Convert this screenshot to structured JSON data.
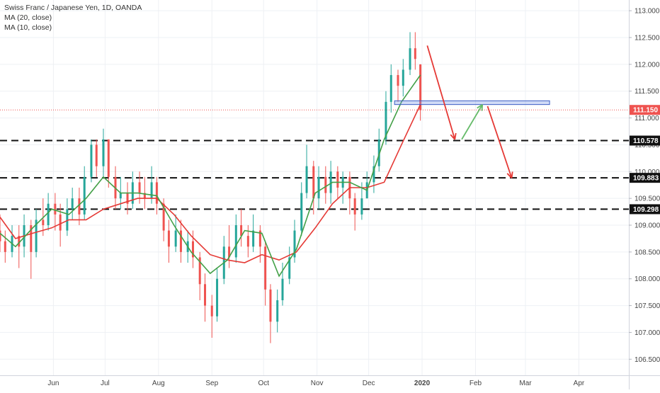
{
  "chart_data": {
    "type": "candlestick",
    "title": "Swiss Franc / Japanese Yen, 1D, OANDA",
    "indicators": [
      {
        "name": "MA (20, close)",
        "color": "#e53935"
      },
      {
        "name": "MA (10, close)",
        "color": "#43a047"
      }
    ],
    "ylim": [
      106.2,
      113.2
    ],
    "y_ticks": [
      "106.500",
      "107.000",
      "107.500",
      "108.000",
      "108.500",
      "109.000",
      "109.500",
      "110.000",
      "110.500",
      "111.000",
      "111.500",
      "112.000",
      "112.500",
      "113.000"
    ],
    "x_ticks": [
      "Jun",
      "Jul",
      "Aug",
      "Sep",
      "Oct",
      "Nov",
      "Dec",
      "2020",
      "Feb",
      "Mar",
      "Apr"
    ],
    "grid": true,
    "current_price": {
      "label": "111.150",
      "value": 111.15,
      "color": "#ef5350"
    },
    "levels": [
      {
        "label": "110.578",
        "value": 110.578
      },
      {
        "label": "109.883",
        "value": 109.883
      },
      {
        "label": "109.298",
        "value": 109.298
      }
    ],
    "zone": {
      "start": "2019-12-16",
      "end": "2020-03-15",
      "low": 111.25,
      "high": 111.32
    },
    "arrows": [
      {
        "color": "#e53935",
        "from": [
          "2020-01-04",
          112.35
        ],
        "to": [
          "2020-01-20",
          110.6
        ]
      },
      {
        "color": "#66bb6a",
        "from": [
          "2020-01-24",
          110.6
        ],
        "to": [
          "2020-02-05",
          111.25
        ]
      },
      {
        "color": "#e53935",
        "from": [
          "2020-02-08",
          111.22
        ],
        "to": [
          "2020-02-22",
          109.88
        ]
      }
    ],
    "ma20": [
      [
        "2019-05-01",
        109.15
      ],
      [
        "2019-05-10",
        108.75
      ],
      [
        "2019-05-20",
        108.85
      ],
      [
        "2019-05-31",
        108.95
      ],
      [
        "2019-06-10",
        109.1
      ],
      [
        "2019-06-20",
        109.1
      ],
      [
        "2019-06-30",
        109.3
      ],
      [
        "2019-07-10",
        109.4
      ],
      [
        "2019-07-20",
        109.5
      ],
      [
        "2019-07-31",
        109.5
      ],
      [
        "2019-08-10",
        109.2
      ],
      [
        "2019-08-20",
        108.8
      ],
      [
        "2019-08-31",
        108.45
      ],
      [
        "2019-09-10",
        108.35
      ],
      [
        "2019-09-20",
        108.3
      ],
      [
        "2019-09-30",
        108.45
      ],
      [
        "2019-10-10",
        108.35
      ],
      [
        "2019-10-20",
        108.5
      ],
      [
        "2019-10-31",
        108.95
      ],
      [
        "2019-11-10",
        109.4
      ],
      [
        "2019-11-20",
        109.7
      ],
      [
        "2019-11-30",
        109.7
      ],
      [
        "2019-12-10",
        109.8
      ],
      [
        "2019-12-20",
        110.5
      ],
      [
        "2019-12-31",
        111.25
      ]
    ],
    "ma10": [
      [
        "2019-05-01",
        108.85
      ],
      [
        "2019-05-10",
        108.6
      ],
      [
        "2019-05-20",
        108.95
      ],
      [
        "2019-05-31",
        109.3
      ],
      [
        "2019-06-10",
        109.2
      ],
      [
        "2019-06-20",
        109.5
      ],
      [
        "2019-06-30",
        109.9
      ],
      [
        "2019-07-10",
        109.6
      ],
      [
        "2019-07-20",
        109.6
      ],
      [
        "2019-07-31",
        109.55
      ],
      [
        "2019-08-10",
        109.0
      ],
      [
        "2019-08-20",
        108.5
      ],
      [
        "2019-08-31",
        108.1
      ],
      [
        "2019-09-10",
        108.35
      ],
      [
        "2019-09-20",
        108.9
      ],
      [
        "2019-09-30",
        108.85
      ],
      [
        "2019-10-10",
        108.05
      ],
      [
        "2019-10-20",
        108.55
      ],
      [
        "2019-10-31",
        109.6
      ],
      [
        "2019-11-10",
        109.8
      ],
      [
        "2019-11-20",
        109.8
      ],
      [
        "2019-11-30",
        109.65
      ],
      [
        "2019-12-10",
        110.6
      ],
      [
        "2019-12-20",
        111.3
      ],
      [
        "2019-12-31",
        111.8
      ]
    ],
    "candles": [
      [
        "2019-05-01",
        108.9,
        108.7,
        109.2,
        108.5
      ],
      [
        "2019-05-04",
        108.7,
        108.5,
        108.9,
        108.3
      ],
      [
        "2019-05-08",
        108.5,
        108.8,
        109.0,
        108.4
      ],
      [
        "2019-05-12",
        108.8,
        108.6,
        109.0,
        108.2
      ],
      [
        "2019-05-15",
        108.6,
        109.0,
        109.2,
        108.4
      ],
      [
        "2019-05-19",
        109.0,
        108.5,
        109.1,
        108.0
      ],
      [
        "2019-05-22",
        108.5,
        109.1,
        109.3,
        108.4
      ],
      [
        "2019-05-26",
        109.1,
        109.0,
        109.5,
        108.8
      ],
      [
        "2019-05-29",
        109.0,
        109.4,
        109.6,
        108.9
      ],
      [
        "2019-06-02",
        109.4,
        109.2,
        109.6,
        108.9
      ],
      [
        "2019-06-05",
        109.2,
        108.9,
        109.4,
        108.6
      ],
      [
        "2019-06-09",
        108.9,
        109.3,
        109.5,
        108.8
      ],
      [
        "2019-06-12",
        109.3,
        109.5,
        109.7,
        109.1
      ],
      [
        "2019-06-16",
        109.5,
        109.2,
        109.7,
        109.0
      ],
      [
        "2019-06-19",
        109.2,
        109.9,
        110.1,
        109.1
      ],
      [
        "2019-06-23",
        109.9,
        110.5,
        110.6,
        109.8
      ],
      [
        "2019-06-26",
        110.5,
        110.1,
        110.6,
        109.9
      ],
      [
        "2019-06-30",
        110.1,
        110.6,
        110.8,
        109.9
      ],
      [
        "2019-07-03",
        110.6,
        109.9,
        110.6,
        109.7
      ],
      [
        "2019-07-07",
        109.9,
        109.5,
        110.1,
        109.3
      ],
      [
        "2019-07-10",
        109.5,
        109.6,
        109.9,
        109.3
      ],
      [
        "2019-07-14",
        109.6,
        109.4,
        109.8,
        109.2
      ],
      [
        "2019-07-17",
        109.4,
        109.8,
        110.0,
        109.3
      ],
      [
        "2019-07-21",
        109.8,
        109.6,
        110.0,
        109.4
      ],
      [
        "2019-07-24",
        109.6,
        109.5,
        109.9,
        109.3
      ],
      [
        "2019-07-28",
        109.5,
        109.8,
        110.1,
        109.4
      ],
      [
        "2019-07-31",
        109.8,
        109.4,
        109.9,
        109.2
      ],
      [
        "2019-08-04",
        109.4,
        108.9,
        109.5,
        108.7
      ],
      [
        "2019-08-07",
        108.9,
        108.6,
        109.1,
        108.3
      ],
      [
        "2019-08-11",
        108.6,
        108.9,
        109.2,
        108.5
      ],
      [
        "2019-08-14",
        108.9,
        108.5,
        109.1,
        108.3
      ],
      [
        "2019-08-18",
        108.5,
        108.7,
        108.9,
        108.3
      ],
      [
        "2019-08-21",
        108.7,
        108.4,
        108.9,
        108.2
      ],
      [
        "2019-08-25",
        108.4,
        107.9,
        108.5,
        107.6
      ],
      [
        "2019-08-28",
        107.9,
        107.5,
        108.1,
        107.2
      ],
      [
        "2019-09-01",
        107.5,
        107.3,
        107.7,
        106.9
      ],
      [
        "2019-09-04",
        107.3,
        108.0,
        108.2,
        107.2
      ],
      [
        "2019-09-08",
        108.0,
        108.6,
        108.8,
        107.9
      ],
      [
        "2019-09-11",
        108.6,
        108.4,
        109.0,
        108.2
      ],
      [
        "2019-09-15",
        108.4,
        109.0,
        109.2,
        108.3
      ],
      [
        "2019-09-18",
        109.0,
        108.8,
        109.3,
        108.6
      ],
      [
        "2019-09-22",
        108.8,
        108.6,
        109.0,
        108.4
      ],
      [
        "2019-09-25",
        108.6,
        108.9,
        109.2,
        108.5
      ],
      [
        "2019-09-29",
        108.9,
        108.6,
        109.0,
        108.3
      ],
      [
        "2019-10-02",
        108.6,
        107.8,
        108.7,
        107.5
      ],
      [
        "2019-10-05",
        107.8,
        107.2,
        107.9,
        106.8
      ],
      [
        "2019-10-09",
        107.2,
        107.6,
        107.8,
        107.0
      ],
      [
        "2019-10-12",
        107.6,
        108.0,
        108.3,
        107.5
      ],
      [
        "2019-10-16",
        108.0,
        108.4,
        108.6,
        107.9
      ],
      [
        "2019-10-19",
        108.4,
        108.9,
        109.1,
        108.3
      ],
      [
        "2019-10-23",
        108.9,
        109.6,
        109.8,
        108.8
      ],
      [
        "2019-10-26",
        109.6,
        110.1,
        110.5,
        109.5
      ],
      [
        "2019-10-30",
        110.1,
        109.5,
        110.2,
        109.2
      ],
      [
        "2019-11-02",
        109.5,
        109.9,
        110.1,
        109.3
      ],
      [
        "2019-11-06",
        109.9,
        109.6,
        110.1,
        109.4
      ],
      [
        "2019-11-09",
        109.6,
        110.0,
        110.2,
        109.4
      ],
      [
        "2019-11-13",
        110.0,
        109.7,
        110.1,
        109.5
      ],
      [
        "2019-11-16",
        109.7,
        109.9,
        110.0,
        109.4
      ],
      [
        "2019-11-20",
        109.9,
        109.5,
        110.0,
        109.2
      ],
      [
        "2019-11-23",
        109.5,
        109.2,
        109.6,
        108.9
      ],
      [
        "2019-11-27",
        109.2,
        109.5,
        109.8,
        109.1
      ],
      [
        "2019-11-30",
        109.5,
        109.8,
        110.0,
        109.5
      ],
      [
        "2019-12-04",
        109.8,
        110.1,
        110.3,
        109.6
      ],
      [
        "2019-12-07",
        110.1,
        110.6,
        110.8,
        110.0
      ],
      [
        "2019-12-11",
        110.6,
        111.3,
        111.5,
        110.5
      ],
      [
        "2019-12-14",
        111.3,
        111.8,
        112.0,
        111.1
      ],
      [
        "2019-12-18",
        111.8,
        111.6,
        111.9,
        111.3
      ],
      [
        "2019-12-21",
        111.6,
        111.9,
        112.1,
        111.4
      ],
      [
        "2019-12-25",
        111.9,
        112.3,
        112.6,
        111.8
      ],
      [
        "2019-12-28",
        112.3,
        112.1,
        112.6,
        111.9
      ],
      [
        "2019-12-31",
        112.0,
        111.15,
        112.0,
        110.95
      ]
    ]
  }
}
